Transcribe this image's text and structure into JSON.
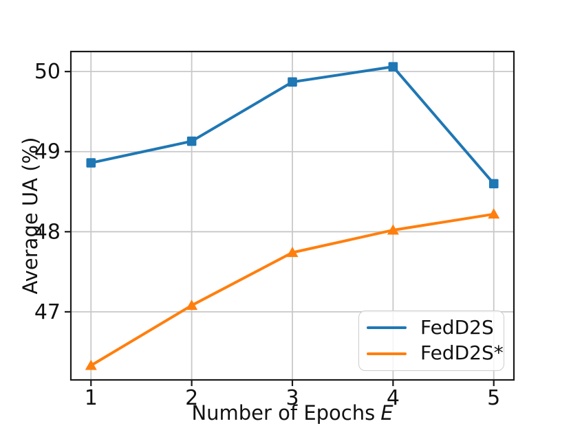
{
  "chart_data": {
    "type": "line",
    "x": [
      1,
      2,
      3,
      4,
      5
    ],
    "series": [
      {
        "name": "FedD2S",
        "color": "#1f77b4",
        "marker": "square",
        "values": [
          48.86,
          49.13,
          49.87,
          50.06,
          48.6
        ]
      },
      {
        "name": "FedD2S*",
        "color": "#ff7f0e",
        "marker": "triangle-up",
        "values": [
          46.33,
          47.08,
          47.74,
          48.02,
          48.22
        ]
      }
    ],
    "xlabel": "Number of Epochs E",
    "xlabel_parts": {
      "text": "Number of Epochs",
      "variable": "E"
    },
    "ylabel": "Average UA (%)",
    "xticks": [
      1,
      2,
      3,
      4,
      5
    ],
    "yticks": [
      47,
      48,
      49,
      50
    ],
    "xlim": [
      0.8,
      5.2
    ],
    "ylim": [
      46.15,
      50.25
    ],
    "grid": true,
    "legend": {
      "position": "lower right",
      "entries": [
        "FedD2S",
        "FedD2S*"
      ]
    },
    "colors": {
      "grid": "#c8c8c8",
      "spine": "#1a1a1a",
      "text": "#111111"
    }
  }
}
